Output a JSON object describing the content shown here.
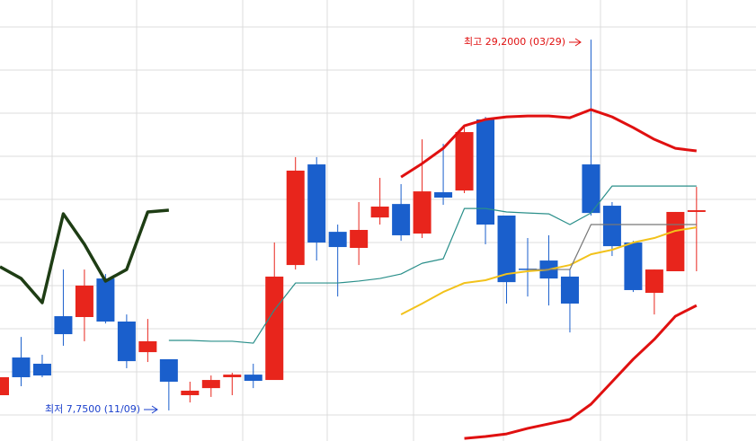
{
  "chart_data": {
    "type": "candlestick",
    "ylim": [
      5.98,
      31.49
    ],
    "up_color": "#e8251c",
    "down_color": "#1a5fcc",
    "annotations": {
      "high": "최고 29,2000 (03/29)",
      "low": "최저 7,7500 (11/09)"
    },
    "open": [
      8.63,
      10.81,
      10.45,
      13.2,
      13.15,
      15.38,
      12.89,
      11.12,
      10.71,
      8.63,
      9.04,
      9.67,
      9.82,
      9.51,
      16.16,
      21.98,
      18.08,
      17.15,
      18.91,
      19.69,
      17.98,
      20.37,
      20.47,
      24.58,
      19.02,
      15.95,
      16.42,
      15.49,
      21.98,
      19.59,
      17.46,
      14.55,
      15.8,
      19.23
    ],
    "high": [
      9.67,
      12.0,
      10.97,
      15.9,
      15.9,
      15.64,
      13.3,
      13.04,
      10.71,
      9.41,
      9.77,
      9.93,
      10.45,
      17.46,
      22.4,
      22.4,
      18.5,
      19.8,
      21.2,
      20.84,
      23.43,
      23.17,
      24.21,
      24.73,
      19.02,
      17.72,
      17.88,
      15.9,
      29.2,
      19.8,
      17.56,
      15.9,
      19.23,
      20.68
    ],
    "low": [
      8.63,
      9.15,
      9.67,
      11.49,
      11.75,
      12.78,
      10.19,
      10.55,
      7.75,
      8.21,
      8.53,
      8.63,
      9.04,
      9.51,
      15.9,
      16.42,
      14.34,
      16.16,
      18.5,
      17.56,
      17.72,
      19.64,
      20.32,
      17.36,
      13.93,
      14.34,
      13.82,
      12.26,
      19.02,
      16.68,
      14.6,
      13.3,
      15.8,
      15.8
    ],
    "close": [
      9.67,
      9.67,
      9.77,
      12.16,
      14.97,
      12.89,
      10.6,
      11.75,
      9.41,
      8.89,
      9.51,
      9.82,
      9.46,
      15.49,
      21.62,
      17.46,
      17.2,
      18.19,
      19.54,
      17.88,
      20.42,
      20.06,
      23.85,
      18.5,
      15.17,
      15.9,
      15.38,
      13.93,
      19.17,
      17.25,
      14.71,
      15.9,
      19.23,
      19.33
    ],
    "series": [
      {
        "color": "#1e3d14",
        "values": [
          16.06,
          15.38,
          13.98,
          19.12,
          17.36,
          15.23,
          15.9,
          19.23,
          19.33,
          null,
          null,
          null,
          null,
          null,
          null,
          null,
          null,
          null,
          null,
          null,
          null,
          null,
          null,
          null,
          null,
          null,
          null,
          null,
          null,
          null,
          null,
          null,
          null,
          null
        ]
      },
      {
        "color": "#2a8f8a",
        "values": [
          null,
          null,
          null,
          null,
          null,
          null,
          null,
          null,
          11.8,
          11.8,
          11.75,
          11.75,
          11.64,
          13.56,
          15.12,
          15.12,
          15.12,
          15.23,
          15.38,
          15.64,
          16.26,
          16.52,
          19.43,
          19.43,
          19.23,
          19.17,
          19.12,
          18.5,
          19.17,
          20.73,
          20.73,
          20.73,
          20.73,
          20.73
        ]
      },
      {
        "color": "#f2c21b",
        "values": [
          null,
          null,
          null,
          null,
          null,
          null,
          null,
          null,
          null,
          null,
          null,
          null,
          null,
          null,
          null,
          null,
          null,
          null,
          null,
          13.3,
          13.93,
          14.6,
          15.12,
          15.28,
          15.64,
          15.8,
          15.9,
          16.16,
          16.78,
          17.04,
          17.46,
          17.72,
          18.14,
          18.34
        ]
      },
      {
        "color": "#e01010",
        "values": [
          null,
          null,
          null,
          null,
          null,
          null,
          null,
          null,
          null,
          null,
          null,
          null,
          null,
          null,
          null,
          null,
          null,
          null,
          null,
          21.25,
          22.03,
          22.91,
          24.21,
          24.58,
          24.73,
          24.78,
          24.78,
          24.68,
          25.15,
          24.73,
          24.11,
          23.43,
          22.91,
          22.76
        ]
      },
      {
        "color": "#e01010",
        "values": [
          null,
          null,
          null,
          null,
          null,
          null,
          null,
          null,
          null,
          null,
          null,
          null,
          null,
          null,
          null,
          null,
          null,
          null,
          null,
          null,
          null,
          null,
          6.13,
          6.24,
          6.39,
          6.71,
          6.97,
          7.23,
          8.11,
          9.41,
          10.71,
          11.86,
          13.2,
          13.82
        ]
      },
      {
        "color": "#777777",
        "values": [
          null,
          null,
          null,
          null,
          null,
          null,
          null,
          null,
          null,
          null,
          null,
          null,
          null,
          null,
          null,
          null,
          null,
          null,
          null,
          null,
          null,
          null,
          null,
          null,
          null,
          15.9,
          15.9,
          15.9,
          18.5,
          18.5,
          18.5,
          18.5,
          18.5,
          18.5
        ]
      }
    ]
  }
}
